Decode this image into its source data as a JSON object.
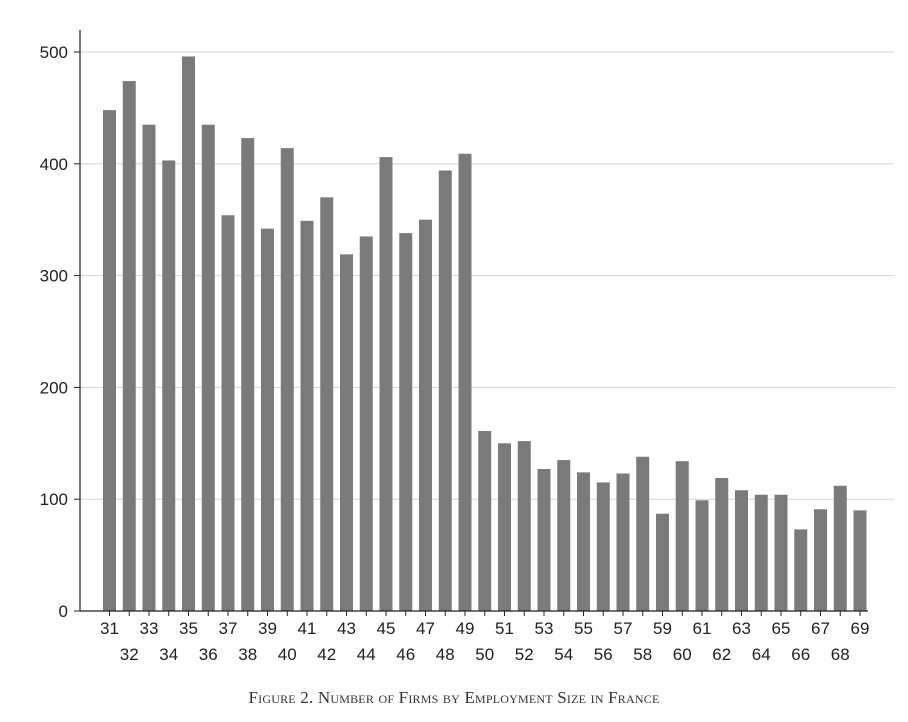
{
  "chart_data": {
    "type": "bar",
    "title": "",
    "xlabel": "",
    "ylabel": "",
    "categories": [
      "31",
      "32",
      "33",
      "34",
      "35",
      "36",
      "37",
      "38",
      "39",
      "40",
      "41",
      "42",
      "43",
      "44",
      "45",
      "46",
      "47",
      "48",
      "49",
      "50",
      "51",
      "52",
      "53",
      "54",
      "55",
      "56",
      "57",
      "58",
      "59",
      "60",
      "61",
      "62",
      "63",
      "64",
      "65",
      "66",
      "67",
      "68",
      "69"
    ],
    "values": [
      448,
      474,
      435,
      403,
      496,
      435,
      354,
      423,
      342,
      414,
      349,
      370,
      319,
      335,
      406,
      338,
      350,
      394,
      409,
      161,
      150,
      152,
      127,
      135,
      124,
      115,
      123,
      138,
      87,
      134,
      99,
      119,
      108,
      104,
      104,
      73,
      91,
      112,
      90
    ],
    "ylim": [
      0,
      520
    ],
    "yticks": [
      0,
      100,
      200,
      300,
      400,
      500
    ],
    "grid": true,
    "bar_color": "#7a7a7a",
    "grid_color": "#d4d4d4"
  },
  "caption": "Figure 2. Number of Firms by Employment Size in France"
}
